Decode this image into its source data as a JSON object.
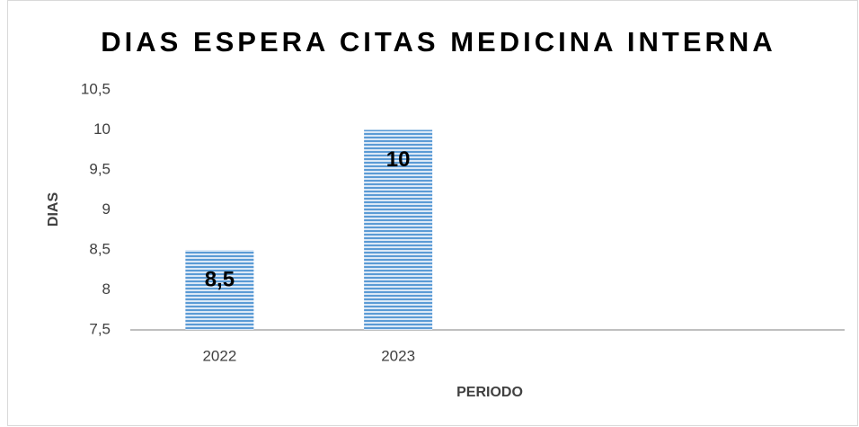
{
  "chart_data": {
    "type": "bar",
    "title": "DIAS ESPERA CITAS MEDICINA INTERNA",
    "x_label": "PERIODO",
    "y_label": "DIAS",
    "categories": [
      "2022",
      "2023",
      null,
      null
    ],
    "values": [
      8.5,
      10,
      null,
      null
    ],
    "value_labels": [
      "8,5",
      "10",
      null,
      null
    ],
    "color": "#5b9bd5",
    "ylim": [
      7.5,
      10.5
    ],
    "yticks": [
      {
        "value": 7.5,
        "label": "7,5"
      },
      8,
      {
        "value": 8.5,
        "label": "8,5"
      },
      9,
      {
        "value": 9.5,
        "label": "9,5"
      },
      10,
      {
        "value": 10.5,
        "label": "10,5"
      }
    ],
    "grid": false
  }
}
